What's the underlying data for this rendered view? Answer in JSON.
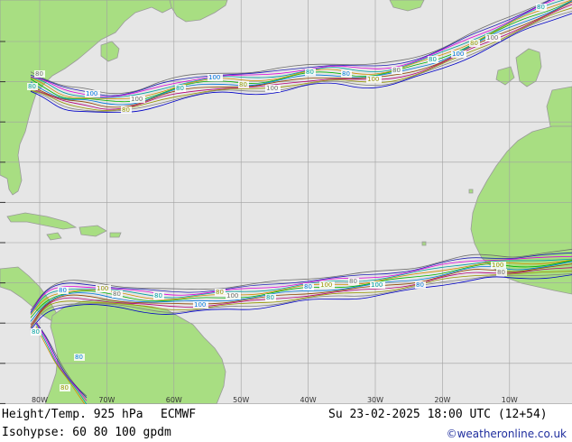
{
  "map": {
    "colors": {
      "ocean": "#e6e6e6",
      "land": "#a8de82",
      "coast": "#9a9a9a",
      "grid": "#a0a0a0",
      "contour_palette": [
        "#6e6e6e",
        "#1e1eb4",
        "#dc00dc",
        "#00a0a0",
        "#d28c00",
        "#00b400",
        "#0078dc",
        "#8c4600",
        "#b40078",
        "#969600",
        "#808080",
        "#0000c8"
      ]
    },
    "lon_labels": [
      "80W",
      "70W",
      "60W",
      "50W",
      "40W",
      "30W",
      "20W",
      "10W"
    ],
    "contour_labels": [
      "80",
      "100",
      "60"
    ]
  },
  "footer": {
    "title": "Height/Temp. 925 hPa",
    "model": "ECMWF",
    "datetime": "Su 23-02-2025 18:00 UTC (12+54)",
    "isohypse": "Isohypse: 60 80 100 gpdm",
    "credit": "©weatheronline.co.uk"
  }
}
